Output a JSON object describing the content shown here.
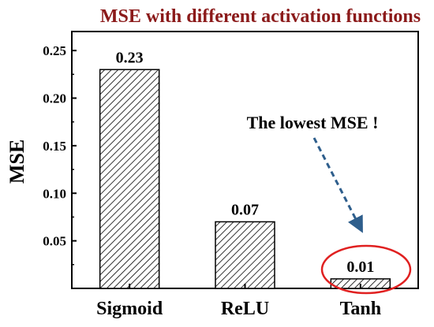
{
  "chart_data": {
    "type": "bar",
    "title": "MSE with different activation functions",
    "xlabel": "",
    "ylabel": "MSE",
    "categories": [
      "Sigmoid",
      "ReLU",
      "Tanh"
    ],
    "values": [
      0.23,
      0.07,
      0.01
    ],
    "data_labels": [
      "0.23",
      "0.07",
      "0.01"
    ],
    "ylim": [
      0,
      0.27
    ],
    "yticks": [
      0.05,
      0.1,
      0.15,
      0.2,
      0.25
    ],
    "ytick_labels": [
      "0.05",
      "0.10",
      "0.15",
      "0.20",
      "0.25"
    ],
    "bar_pattern": "diagonal-hatch",
    "grid": false,
    "annotation": {
      "text": "The lowest MSE !",
      "target_category": "Tanh"
    }
  },
  "colors": {
    "title": "#8B1A1A",
    "annotation_arrow": "#2E5E8C",
    "highlight_ellipse": "#E02020",
    "axis": "#000000"
  }
}
